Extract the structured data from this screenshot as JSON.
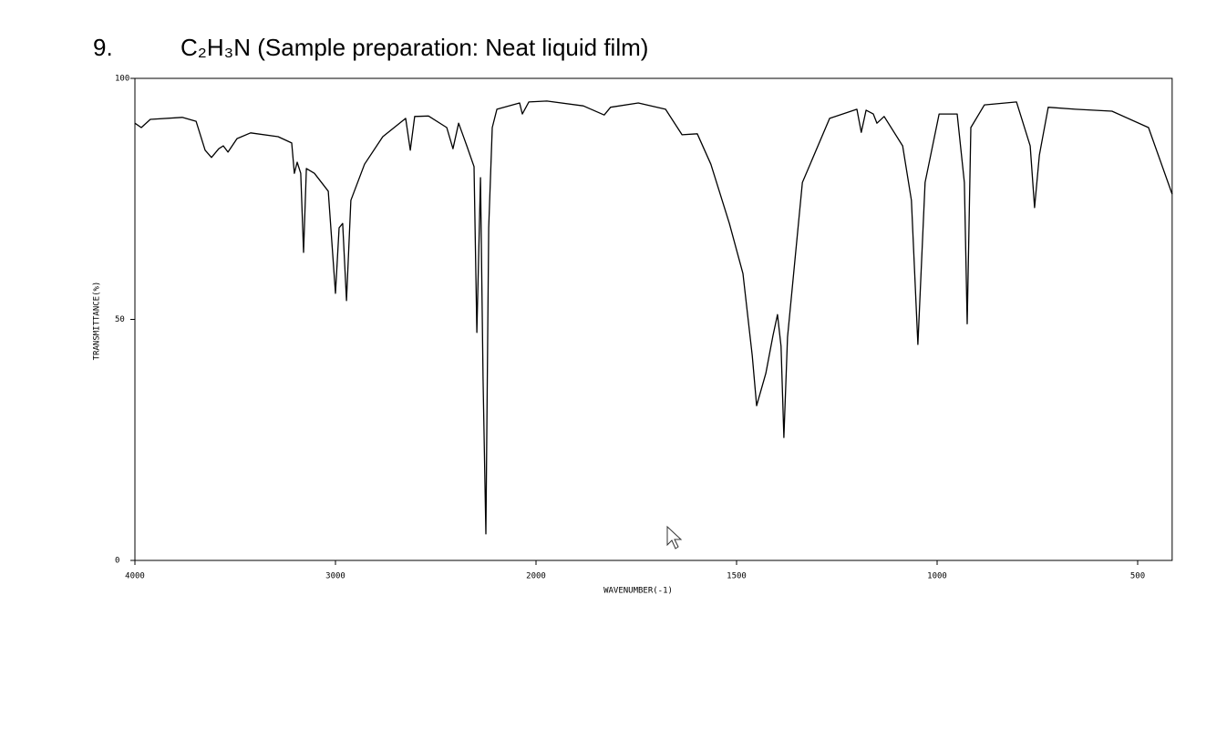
{
  "number": "9.",
  "chart_data": {
    "type": "line",
    "title": "C₂H₃N (Sample preparation: Neat liquid film)",
    "xlabel": "WAVENUMBER(-1)",
    "ylabel": "TRANSMITTANCE(%)",
    "color": "#000000",
    "xlim": [
      4000,
      414
    ],
    "xticks": [
      4000,
      3000,
      2000,
      1500,
      1000,
      500
    ],
    "ylim": [
      0,
      100
    ],
    "yticks": [
      0,
      50,
      100
    ],
    "x": [
      4000,
      3968,
      3923,
      3764,
      3695,
      3650,
      3618,
      3582,
      3559,
      3536,
      3491,
      3423,
      3286,
      3218,
      3205,
      3191,
      3173,
      3159,
      3145,
      3105,
      3036,
      3000,
      2982,
      2964,
      2945,
      2923,
      2855,
      2764,
      2650,
      2627,
      2605,
      2536,
      2445,
      2414,
      2386,
      2345,
      2309,
      2295,
      2277,
      2264,
      2250,
      2236,
      2218,
      2195,
      2082,
      2068,
      2036,
      1973,
      1882,
      1830,
      1814,
      1745,
      1677,
      1636,
      1598,
      1564,
      1518,
      1484,
      1461,
      1450,
      1427,
      1409,
      1398,
      1389,
      1382,
      1373,
      1336,
      1268,
      1200,
      1189,
      1177,
      1159,
      1150,
      1132,
      1086,
      1064,
      1048,
      1030,
      995,
      950,
      932,
      925,
      916,
      882,
      802,
      768,
      757,
      745,
      723,
      655,
      564,
      473,
      414
    ],
    "values": [
      90.7,
      89.8,
      91.5,
      91.9,
      91.1,
      85.1,
      83.6,
      85.4,
      86.0,
      84.7,
      87.5,
      88.7,
      87.9,
      86.6,
      80.3,
      82.6,
      80.3,
      63.9,
      81.3,
      80.3,
      76.6,
      55.4,
      69.0,
      69.9,
      53.9,
      74.7,
      82.2,
      87.9,
      91.7,
      85.1,
      92.1,
      92.2,
      89.8,
      85.4,
      90.7,
      86.0,
      81.7,
      47.3,
      79.4,
      37.8,
      5.5,
      69.0,
      89.8,
      93.6,
      94.9,
      92.6,
      95.1,
      95.3,
      94.3,
      92.4,
      94.0,
      94.9,
      93.6,
      88.3,
      88.5,
      82.2,
      69.9,
      59.5,
      42.5,
      32.1,
      38.8,
      46.7,
      51.0,
      44.4,
      25.5,
      46.3,
      78.4,
      91.7,
      93.6,
      88.8,
      93.4,
      92.6,
      90.7,
      92.1,
      86.0,
      74.7,
      44.8,
      78.4,
      92.6,
      92.6,
      78.4,
      49.1,
      89.8,
      94.5,
      95.1,
      86.0,
      73.2,
      84.1,
      94.0,
      93.6,
      93.2,
      89.8,
      76.0
    ]
  }
}
